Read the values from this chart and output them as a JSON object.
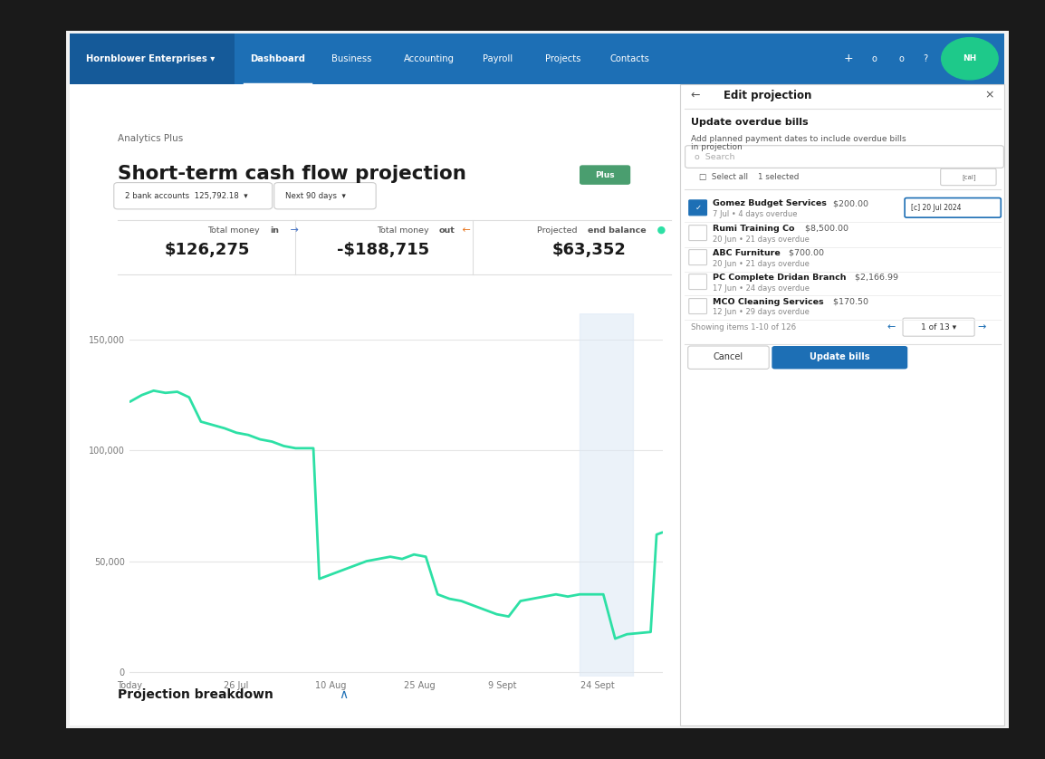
{
  "bg_outer": "#1a1a1a",
  "nav_bg": "#1d6fb5",
  "nav_items": [
    "Hornblower Enterprises ▾",
    "Dashboard",
    "Business",
    "Accounting",
    "Payroll",
    "Projects",
    "Contacts"
  ],
  "analytics_plus_label": "Analytics Plus",
  "title": "Short-term cash flow projection",
  "plus_badge": "Plus",
  "bank_accounts_label": "2 bank accounts  125,792.18  ▾",
  "period_label": "Next 90 days  ▾",
  "money_in_label": "Total money in",
  "money_in_value": "$126,275",
  "money_out_label": "Total money out",
  "money_out_value": "-$188,715",
  "end_balance_label": "Projected end balance",
  "end_balance_value": "$63,352",
  "x_labels": [
    "Today",
    "26 Jul",
    "10 Aug",
    "25 Aug",
    "9 Sept",
    "24 Sept"
  ],
  "y_ticks": [
    0,
    50000,
    100000,
    150000
  ],
  "y_labels": [
    "0",
    "50,000",
    "100,000",
    "150,000"
  ],
  "line_color": "#2de0a5",
  "highlight_color": "#dce8f5",
  "chart_line_data_x": [
    0,
    2,
    4,
    6,
    8,
    10,
    12,
    16,
    18,
    20,
    22,
    24,
    26,
    28,
    31,
    32,
    36,
    38,
    40,
    42,
    44,
    46,
    48,
    50,
    52,
    54,
    56,
    60,
    62,
    64,
    66,
    68,
    70,
    72,
    74,
    76,
    80,
    82,
    84,
    88,
    89,
    90
  ],
  "chart_line_data_y": [
    122000,
    125000,
    127000,
    126000,
    126500,
    124000,
    113000,
    110000,
    108000,
    107000,
    105000,
    104000,
    102000,
    101000,
    101000,
    42000,
    46000,
    48000,
    50000,
    51000,
    52000,
    51000,
    53000,
    52000,
    35000,
    33000,
    32000,
    28000,
    26000,
    25000,
    32000,
    33000,
    34000,
    35000,
    34000,
    35000,
    35000,
    15000,
    17000,
    18000,
    62000,
    63000
  ],
  "edit_panel_title": "Edit projection",
  "edit_panel_section": "Update overdue bills",
  "edit_panel_desc": "Add planned payment dates to include overdue bills\nin projection",
  "panel_items": [
    {
      "name": "Gomez Budget Services",
      "amount": "$200.00",
      "date_info": "7 Jul • 4 days overdue",
      "checked": true,
      "date_value": "20 Jul 2024"
    },
    {
      "name": "Rumi Training Co",
      "amount": "$8,500.00",
      "date_info": "20 Jun • 21 days overdue",
      "checked": false,
      "date_value": null
    },
    {
      "name": "ABC Furniture",
      "amount": "$700.00",
      "date_info": "20 Jun • 21 days overdue",
      "checked": false,
      "date_value": null
    },
    {
      "name": "PC Complete Dridan Branch",
      "amount": "$2,166.99",
      "date_info": "17 Jun • 24 days overdue",
      "checked": false,
      "date_value": null
    },
    {
      "name": "MCO Cleaning Services",
      "amount": "$170.50",
      "date_info": "12 Jun • 29 days overdue",
      "checked": false,
      "date_value": null
    }
  ],
  "pagination": "1 of 13",
  "showing_label": "Showing items 1-10 of 126",
  "cancel_btn": "Cancel",
  "update_btn": "Update bills",
  "projection_breakdown": "Projection breakdown"
}
